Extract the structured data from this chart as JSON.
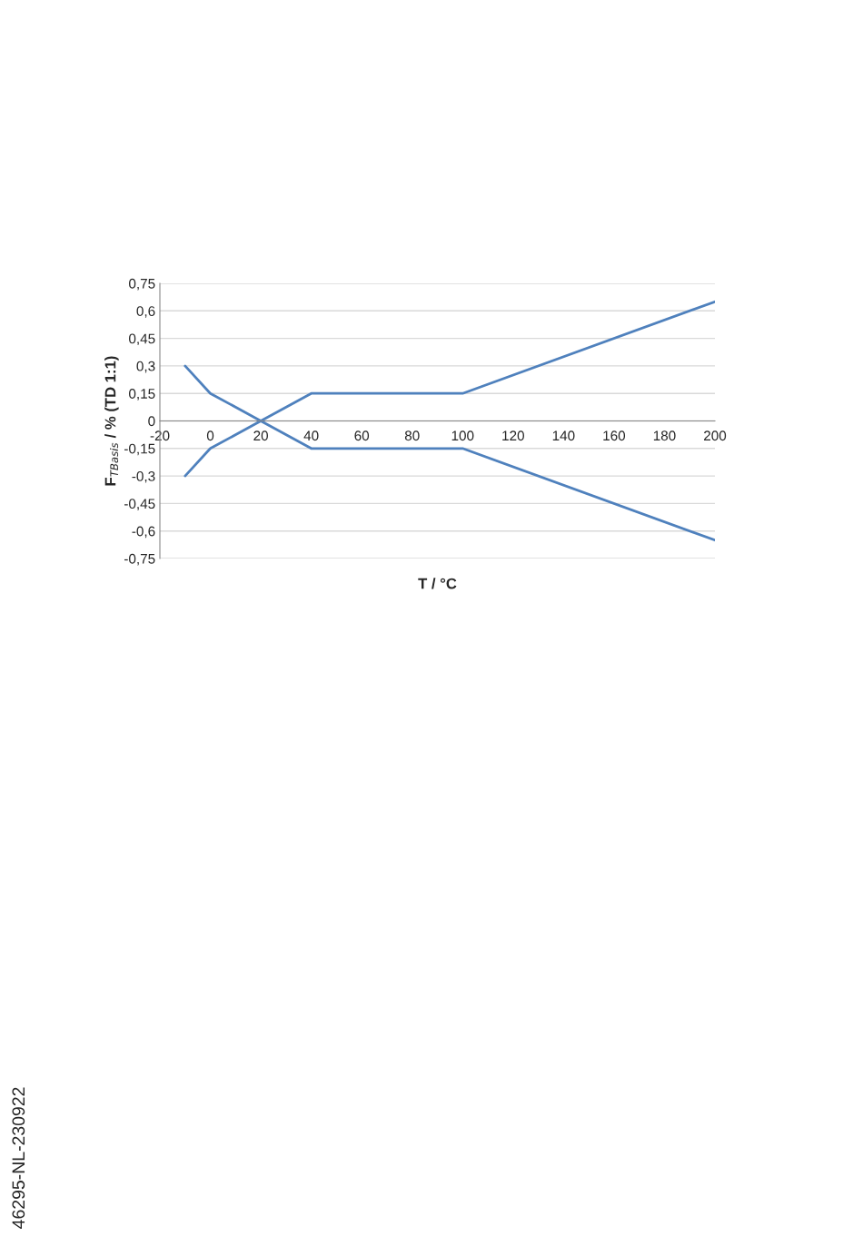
{
  "chart_data": {
    "type": "line",
    "xlabel": "T / °C",
    "ylabel": "F$_{TBasis}$ / % (TD 1:1)",
    "series": [
      {
        "color": "#4f81bd",
        "x": [
          -10,
          0,
          20,
          40,
          100,
          200
        ],
        "values": [
          0.3,
          0.15,
          0,
          -0.15,
          -0.15,
          -0.65
        ]
      },
      {
        "color": "#4f81bd",
        "x": [
          -10,
          0,
          20,
          40,
          100,
          200
        ],
        "values": [
          -0.3,
          -0.15,
          0,
          0.15,
          0.15,
          0.65
        ]
      }
    ],
    "xlim": [
      -20,
      200
    ],
    "xticks": [
      -20,
      0,
      20,
      40,
      60,
      80,
      100,
      120,
      140,
      160,
      180,
      200
    ],
    "ylim": [
      -0.75,
      0.75
    ],
    "yticks": [
      {
        "value": -0.75,
        "label": "-0,75"
      },
      {
        "value": -0.6,
        "label": "-0,6"
      },
      {
        "value": -0.45,
        "label": "-0,45"
      },
      {
        "value": -0.3,
        "label": "-0,3"
      },
      {
        "value": -0.15,
        "label": "-0,15"
      },
      0,
      {
        "value": 0.15,
        "label": "0,15"
      },
      {
        "value": 0.3,
        "label": "0,3"
      },
      {
        "value": 0.45,
        "label": "0,45"
      },
      {
        "value": 0.6,
        "label": "0,6"
      },
      {
        "value": 0.75,
        "label": "0,75"
      }
    ],
    "grid": "y",
    "marker": "none",
    "line_style": "solid",
    "annotations": [
      "46295-NL-230922"
    ]
  }
}
